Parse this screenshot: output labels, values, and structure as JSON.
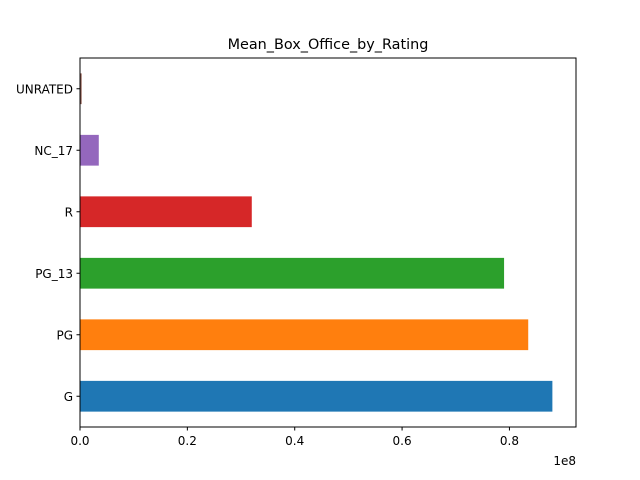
{
  "chart_data": {
    "type": "bar",
    "orientation": "horizontal",
    "title": "Mean_Box_Office_by_Rating",
    "xlabel": "",
    "ylabel": "",
    "x_offset_text": "1e8",
    "categories": [
      "G",
      "PG",
      "PG_13",
      "R",
      "NC_17",
      "UNRATED"
    ],
    "values": [
      88000000,
      83500000,
      79000000,
      32000000,
      3500000,
      300000
    ],
    "colors": [
      "#1f77b4",
      "#ff7f0e",
      "#2ca02c",
      "#d62728",
      "#9467bd",
      "#8c564b"
    ],
    "xlim": [
      0,
      92400000
    ],
    "xticks": [
      0,
      20000000,
      40000000,
      60000000,
      80000000
    ],
    "xtick_labels": [
      "0.0",
      "0.2",
      "0.4",
      "0.6",
      "0.8"
    ],
    "grid": false,
    "legend": "none"
  }
}
